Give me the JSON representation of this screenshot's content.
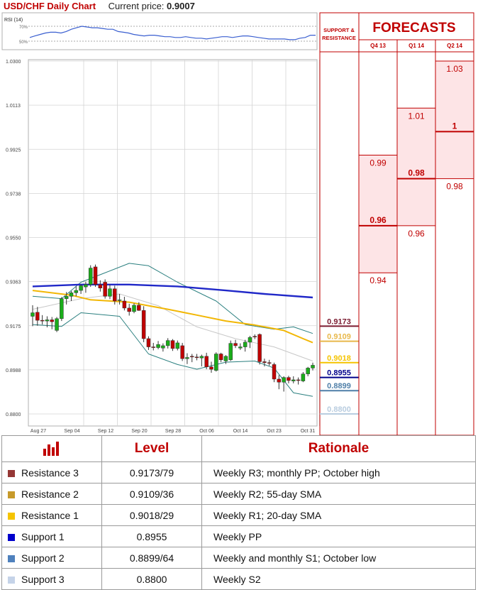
{
  "header": {
    "title": "USD/CHF Daily Chart",
    "price_label": "Current price:",
    "price_value": "0.9007"
  },
  "rsi": {
    "label": "RSI (14)",
    "ticks": [
      "70%",
      "50%"
    ],
    "values": [
      55,
      57,
      59,
      61,
      62,
      62,
      61,
      63,
      66,
      68,
      70,
      69,
      68,
      68,
      67,
      66,
      66,
      63,
      62,
      61,
      59,
      58,
      57,
      58,
      58,
      57,
      56,
      56,
      55,
      55,
      56,
      55,
      54,
      54,
      53,
      54,
      55,
      56,
      56,
      55,
      56,
      57,
      57,
      56,
      55,
      54,
      53,
      53,
      53,
      53,
      52,
      52,
      54,
      55,
      58,
      58
    ]
  },
  "chart_data": {
    "type": "candlestick",
    "ylim": [
      0.88,
      1.03
    ],
    "y_ticks": [
      "1.0300",
      "1.0113",
      "0.9925",
      "0.9738",
      "0.9550",
      "0.9363",
      "0.9175",
      "0.8988",
      "0.8800"
    ],
    "x_ticks": [
      "Aug 27",
      "Sep 04",
      "Sep 12",
      "Sep 20",
      "Sep 28",
      "Oct 06",
      "Oct 14",
      "Oct 23",
      "Oct 31"
    ],
    "colors": {
      "up": "#1aad1a",
      "down": "#c00000",
      "sma55": "#2028c8",
      "sma20": "#f2b705",
      "bands": "#2a7f7f",
      "mid": "#c8c8c8"
    },
    "candles": [
      {
        "o": 0.9215,
        "h": 0.9262,
        "l": 0.9173,
        "c": 0.923
      },
      {
        "o": 0.9232,
        "h": 0.9255,
        "l": 0.9175,
        "c": 0.9198
      },
      {
        "o": 0.9198,
        "h": 0.922,
        "l": 0.918,
        "c": 0.9195
      },
      {
        "o": 0.9195,
        "h": 0.9215,
        "l": 0.9168,
        "c": 0.92
      },
      {
        "o": 0.92,
        "h": 0.9212,
        "l": 0.916,
        "c": 0.9192
      },
      {
        "o": 0.9155,
        "h": 0.9212,
        "l": 0.9148,
        "c": 0.9205
      },
      {
        "o": 0.9205,
        "h": 0.9297,
        "l": 0.9195,
        "c": 0.929
      },
      {
        "o": 0.929,
        "h": 0.9318,
        "l": 0.9265,
        "c": 0.93
      },
      {
        "o": 0.93,
        "h": 0.9322,
        "l": 0.928,
        "c": 0.9315
      },
      {
        "o": 0.9315,
        "h": 0.9342,
        "l": 0.93,
        "c": 0.9325
      },
      {
        "o": 0.9325,
        "h": 0.9352,
        "l": 0.931,
        "c": 0.9345
      },
      {
        "o": 0.934,
        "h": 0.9362,
        "l": 0.9315,
        "c": 0.935
      },
      {
        "o": 0.935,
        "h": 0.9432,
        "l": 0.934,
        "c": 0.942
      },
      {
        "o": 0.9425,
        "h": 0.9435,
        "l": 0.934,
        "c": 0.935
      },
      {
        "o": 0.935,
        "h": 0.9368,
        "l": 0.932,
        "c": 0.9335
      },
      {
        "o": 0.936,
        "h": 0.9372,
        "l": 0.929,
        "c": 0.93
      },
      {
        "o": 0.93,
        "h": 0.935,
        "l": 0.9288,
        "c": 0.9332
      },
      {
        "o": 0.9332,
        "h": 0.9345,
        "l": 0.9265,
        "c": 0.928
      },
      {
        "o": 0.9285,
        "h": 0.931,
        "l": 0.9265,
        "c": 0.9285
      },
      {
        "o": 0.928,
        "h": 0.9298,
        "l": 0.924,
        "c": 0.925
      },
      {
        "o": 0.925,
        "h": 0.9268,
        "l": 0.9218,
        "c": 0.9235
      },
      {
        "o": 0.9235,
        "h": 0.927,
        "l": 0.9228,
        "c": 0.9262
      },
      {
        "o": 0.9262,
        "h": 0.9275,
        "l": 0.9238,
        "c": 0.924
      },
      {
        "o": 0.924,
        "h": 0.9258,
        "l": 0.9105,
        "c": 0.912
      },
      {
        "o": 0.912,
        "h": 0.913,
        "l": 0.9072,
        "c": 0.9085
      },
      {
        "o": 0.9085,
        "h": 0.9102,
        "l": 0.907,
        "c": 0.9082
      },
      {
        "o": 0.9082,
        "h": 0.911,
        "l": 0.9075,
        "c": 0.9095
      },
      {
        "o": 0.908,
        "h": 0.91,
        "l": 0.9065,
        "c": 0.909
      },
      {
        "o": 0.909,
        "h": 0.9122,
        "l": 0.9078,
        "c": 0.9112
      },
      {
        "o": 0.9112,
        "h": 0.9118,
        "l": 0.9068,
        "c": 0.9078
      },
      {
        "o": 0.9078,
        "h": 0.9112,
        "l": 0.907,
        "c": 0.9102
      },
      {
        "o": 0.909,
        "h": 0.9102,
        "l": 0.9025,
        "c": 0.9035
      },
      {
        "o": 0.9035,
        "h": 0.9058,
        "l": 0.9012,
        "c": 0.904
      },
      {
        "o": 0.9045,
        "h": 0.9055,
        "l": 0.902,
        "c": 0.9042
      },
      {
        "o": 0.9042,
        "h": 0.9055,
        "l": 0.9028,
        "c": 0.904
      },
      {
        "o": 0.9038,
        "h": 0.9052,
        "l": 0.9002,
        "c": 0.9045
      },
      {
        "o": 0.9045,
        "h": 0.906,
        "l": 0.899,
        "c": 0.9
      },
      {
        "o": 0.9,
        "h": 0.9022,
        "l": 0.8975,
        "c": 0.899
      },
      {
        "o": 0.8985,
        "h": 0.9062,
        "l": 0.898,
        "c": 0.9055
      },
      {
        "o": 0.9055,
        "h": 0.906,
        "l": 0.902,
        "c": 0.903
      },
      {
        "o": 0.9025,
        "h": 0.905,
        "l": 0.9012,
        "c": 0.9045
      },
      {
        "o": 0.903,
        "h": 0.9112,
        "l": 0.9025,
        "c": 0.91
      },
      {
        "o": 0.91,
        "h": 0.9115,
        "l": 0.908,
        "c": 0.909
      },
      {
        "o": 0.908,
        "h": 0.91,
        "l": 0.9072,
        "c": 0.9085
      },
      {
        "o": 0.9085,
        "h": 0.9115,
        "l": 0.9065,
        "c": 0.9105
      },
      {
        "o": 0.9105,
        "h": 0.9132,
        "l": 0.908,
        "c": 0.9125
      },
      {
        "o": 0.913,
        "h": 0.9138,
        "l": 0.9118,
        "c": 0.9128
      },
      {
        "o": 0.9138,
        "h": 0.9142,
        "l": 0.901,
        "c": 0.9022
      },
      {
        "o": 0.9022,
        "h": 0.9035,
        "l": 0.9002,
        "c": 0.9018
      },
      {
        "o": 0.9018,
        "h": 0.903,
        "l": 0.9005,
        "c": 0.9015
      },
      {
        "o": 0.901,
        "h": 0.9018,
        "l": 0.8935,
        "c": 0.8948
      },
      {
        "o": 0.8948,
        "h": 0.8965,
        "l": 0.8905,
        "c": 0.8935
      },
      {
        "o": 0.8935,
        "h": 0.896,
        "l": 0.8895,
        "c": 0.8955
      },
      {
        "o": 0.8955,
        "h": 0.8962,
        "l": 0.893,
        "c": 0.8942
      },
      {
        "o": 0.894,
        "h": 0.896,
        "l": 0.893,
        "c": 0.8945
      },
      {
        "o": 0.8945,
        "h": 0.8955,
        "l": 0.8925,
        "c": 0.8942
      },
      {
        "o": 0.894,
        "h": 0.8978,
        "l": 0.8935,
        "c": 0.897
      },
      {
        "o": 0.897,
        "h": 0.9,
        "l": 0.896,
        "c": 0.8995
      },
      {
        "o": 0.8995,
        "h": 0.9018,
        "l": 0.8985,
        "c": 0.9007
      }
    ],
    "sma55": [
      [
        0,
        0.9342
      ],
      [
        10,
        0.935
      ],
      [
        20,
        0.935
      ],
      [
        30,
        0.9342
      ],
      [
        40,
        0.9325
      ],
      [
        48,
        0.931
      ],
      [
        58,
        0.9295
      ]
    ],
    "sma20": [
      [
        0,
        0.9325
      ],
      [
        8,
        0.9305
      ],
      [
        12,
        0.9285
      ],
      [
        20,
        0.9275
      ],
      [
        28,
        0.9245
      ],
      [
        34,
        0.922
      ],
      [
        40,
        0.9195
      ],
      [
        46,
        0.9178
      ],
      [
        52,
        0.9155
      ],
      [
        56,
        0.912
      ],
      [
        58,
        0.9103
      ]
    ],
    "upper_band": [
      [
        0,
        0.93
      ],
      [
        6,
        0.929
      ],
      [
        10,
        0.936
      ],
      [
        14,
        0.9392
      ],
      [
        20,
        0.944
      ],
      [
        24,
        0.943
      ],
      [
        30,
        0.936
      ],
      [
        38,
        0.928
      ],
      [
        44,
        0.918
      ],
      [
        50,
        0.916
      ],
      [
        54,
        0.917
      ],
      [
        58,
        0.9142
      ]
    ],
    "lower_band": [
      [
        0,
        0.918
      ],
      [
        6,
        0.9172
      ],
      [
        10,
        0.923
      ],
      [
        18,
        0.9215
      ],
      [
        24,
        0.9055
      ],
      [
        30,
        0.901
      ],
      [
        34,
        0.899
      ],
      [
        40,
        0.902
      ],
      [
        46,
        0.9025
      ],
      [
        50,
        0.8995
      ],
      [
        54,
        0.889
      ],
      [
        58,
        0.8875
      ]
    ],
    "mid_band": [
      [
        0,
        0.9245
      ],
      [
        10,
        0.929
      ],
      [
        18,
        0.931
      ],
      [
        26,
        0.926
      ],
      [
        34,
        0.917
      ],
      [
        42,
        0.912
      ],
      [
        50,
        0.9085
      ],
      [
        58,
        0.9025
      ]
    ]
  },
  "sr": {
    "title_line1": "SUPPORT &",
    "title_line2": "RESISTANCE",
    "levels": [
      {
        "label": "0.9173",
        "value": 0.9173,
        "color": "#7b1b30"
      },
      {
        "label": "0.9109",
        "value": 0.9109,
        "color": "#e8b84a"
      },
      {
        "label": "0.9018",
        "value": 0.9018,
        "color": "#f5c400"
      },
      {
        "label": "0.8955",
        "value": 0.8955,
        "color": "#00008b"
      },
      {
        "label": "0.8899",
        "value": 0.8899,
        "color": "#4f7fa8"
      },
      {
        "label": "0.8800",
        "value": 0.88,
        "color": "#b9cde0"
      }
    ]
  },
  "forecasts": {
    "title": "FORECASTS",
    "columns": [
      {
        "label": "Q4 13",
        "values": [
          "0.99",
          "0.96",
          "0.94"
        ],
        "main": "0.96"
      },
      {
        "label": "Q1 14",
        "values": [
          "1.01",
          "0.98",
          "0.96"
        ],
        "main": "0.98"
      },
      {
        "label": "Q2 14",
        "values": [
          "1.03",
          "1",
          "0.98"
        ],
        "main": "1"
      }
    ]
  },
  "table": {
    "headers": {
      "level": "Level",
      "rationale": "Rationale"
    },
    "rows": [
      {
        "name": "Resistance 3",
        "level": "0.9173/79",
        "rationale": "Weekly R3; monthly PP; October high",
        "color": "#953735"
      },
      {
        "name": "Resistance 2",
        "level": "0.9109/36",
        "rationale": "Weekly R2; 55-day SMA",
        "color": "#c79a2b"
      },
      {
        "name": "Resistance 1",
        "level": "0.9018/29",
        "rationale": "Weekly R1; 20-day SMA",
        "color": "#f5c400"
      },
      {
        "name": "Support 1",
        "level": "0.8955",
        "rationale": "Weekly PP",
        "color": "#0000cc"
      },
      {
        "name": "Support 2",
        "level": "0.8899/64",
        "rationale": "Weekly and monthly S1; October low",
        "color": "#4f81bd"
      },
      {
        "name": "Support 3",
        "level": "0.8800",
        "rationale": "Weekly S2",
        "color": "#c5d3e8"
      }
    ]
  }
}
